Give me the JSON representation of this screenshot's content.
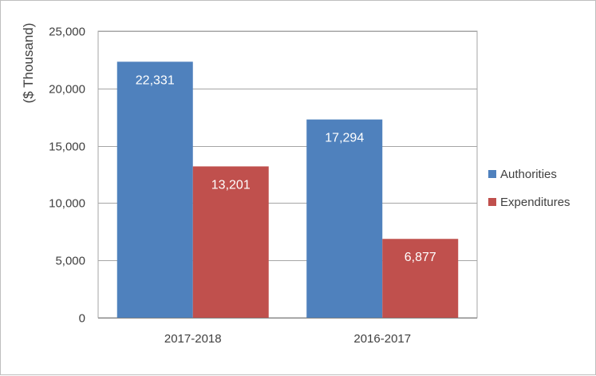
{
  "chart_data": {
    "type": "bar",
    "categories": [
      "2017-2018",
      "2016-2017"
    ],
    "series": [
      {
        "name": "Authorities",
        "values": [
          22331,
          17294
        ],
        "labels": [
          "22,331",
          "17,294"
        ],
        "color": "#4f81bd"
      },
      {
        "name": "Expenditures",
        "values": [
          13201,
          6877
        ],
        "labels": [
          "13,201",
          "6,877"
        ],
        "color": "#c0504d"
      }
    ],
    "title": "",
    "xlabel": "",
    "ylabel": "($ Thousand)",
    "ylim": [
      0,
      25000
    ],
    "yticks": [
      0,
      5000,
      10000,
      15000,
      20000,
      25000
    ],
    "ytick_labels": [
      "0",
      "5,000",
      "10,000",
      "15,000",
      "20,000",
      "25,000"
    ],
    "grid": true,
    "legend_position": "right",
    "gridline_color": "#a6a6a6"
  }
}
